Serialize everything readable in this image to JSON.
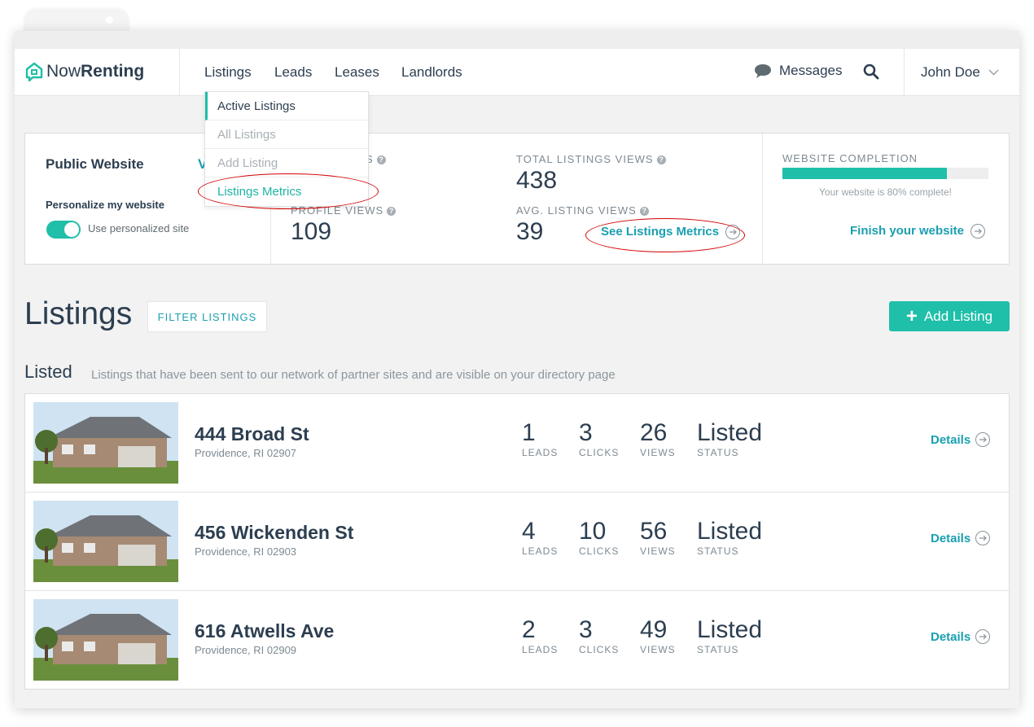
{
  "brand": {
    "name_regular": "Now",
    "name_bold": "Renting"
  },
  "nav": {
    "listings": "Listings",
    "leads": "Leads",
    "leases": "Leases",
    "landlords": "Landlords",
    "messages": "Messages",
    "user": "John Doe"
  },
  "dropdown": {
    "items": [
      "Active Listings",
      "All Listings",
      "Add Listing",
      "Listings Metrics"
    ]
  },
  "website": {
    "title": "Public Website",
    "title_cut": "V",
    "personalize_label": "Personalize my website",
    "toggle_label": "Use personalized site",
    "toggle_on": true
  },
  "metrics": {
    "first_label_cut": "S",
    "total_views_label": "TOTAL LISTINGS VIEWS",
    "total_views": "438",
    "profile_views_label": "PROFILE VIEWS",
    "profile_views": "109",
    "avg_views_label": "AVG. LISTING VIEWS",
    "avg_views": "39",
    "see_metrics": "See Listings Metrics"
  },
  "completion": {
    "label": "WEBSITE COMPLETION",
    "progress": 0.8,
    "note": "Your website is 80% complete!",
    "finish": "Finish your website"
  },
  "listings": {
    "heading": "Listings",
    "filter": "FILTER LISTINGS",
    "add": "Add Listing",
    "section": "Listed",
    "section_desc": "Listings that have been sent to our network of partner sites and are visible on your directory page"
  },
  "rows": [
    {
      "address": "444 Broad St",
      "city": "Providence, RI 02907",
      "leads": "1",
      "clicks": "3",
      "views": "26",
      "status": "Listed",
      "details": "Details"
    },
    {
      "address": "456 Wickenden St",
      "city": "Providence, RI 02903",
      "leads": "4",
      "clicks": "10",
      "views": "56",
      "status": "Listed",
      "details": "Details"
    },
    {
      "address": "616 Atwells Ave",
      "city": "Providence, RI 02909",
      "leads": "2",
      "clicks": "3",
      "views": "49",
      "status": "Listed",
      "details": "Details"
    }
  ],
  "stat_labels": {
    "leads": "LEADS",
    "clicks": "CLICKS",
    "views": "VIEWS",
    "status": "STATUS"
  },
  "colors": {
    "accent": "#1fbfa9",
    "link": "#1a9fb0",
    "annotation": "#d40000"
  }
}
